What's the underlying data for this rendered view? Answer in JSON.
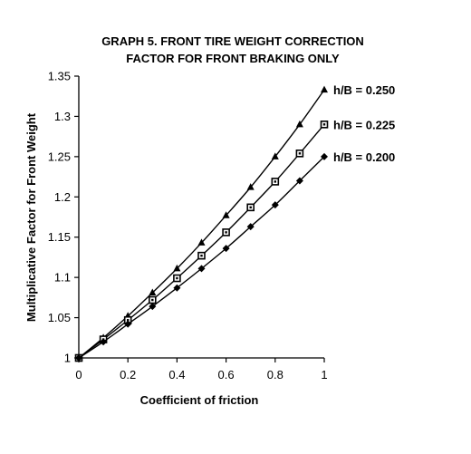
{
  "chart_data": {
    "type": "line",
    "title_lines": [
      "GRAPH 5. FRONT TIRE WEIGHT CORRECTION",
      "FACTOR FOR FRONT BRAKING ONLY"
    ],
    "xlabel": "Coefficient of friction",
    "ylabel": "Multiplicative Factor for Front Weight",
    "xlim": [
      0,
      1
    ],
    "ylim": [
      1,
      1.35
    ],
    "x_ticks": [
      "0",
      "0.2",
      "0.4",
      "0.6",
      "0.8",
      "1"
    ],
    "y_ticks": [
      "1",
      "1.05",
      "1.1",
      "1.15",
      "1.2",
      "1.25",
      "1.3",
      "1.35"
    ],
    "grid": false,
    "x": [
      0,
      0.1,
      0.2,
      0.3,
      0.4,
      0.5,
      0.6,
      0.7,
      0.8,
      0.9,
      1.0
    ],
    "series": [
      {
        "name": "h/B = 0.250",
        "marker": "triangle",
        "values": [
          1.0,
          1.025,
          1.052,
          1.081,
          1.111,
          1.143,
          1.177,
          1.212,
          1.25,
          1.29,
          1.333
        ]
      },
      {
        "name": "h/B = 0.225",
        "marker": "square",
        "values": [
          1.0,
          1.023,
          1.047,
          1.072,
          1.099,
          1.127,
          1.156,
          1.187,
          1.219,
          1.254,
          1.29
        ]
      },
      {
        "name": "h/B = 0.200",
        "marker": "diamond",
        "values": [
          1.0,
          1.02,
          1.042,
          1.064,
          1.087,
          1.111,
          1.136,
          1.163,
          1.19,
          1.22,
          1.25
        ]
      }
    ],
    "line_color": "#000000"
  }
}
